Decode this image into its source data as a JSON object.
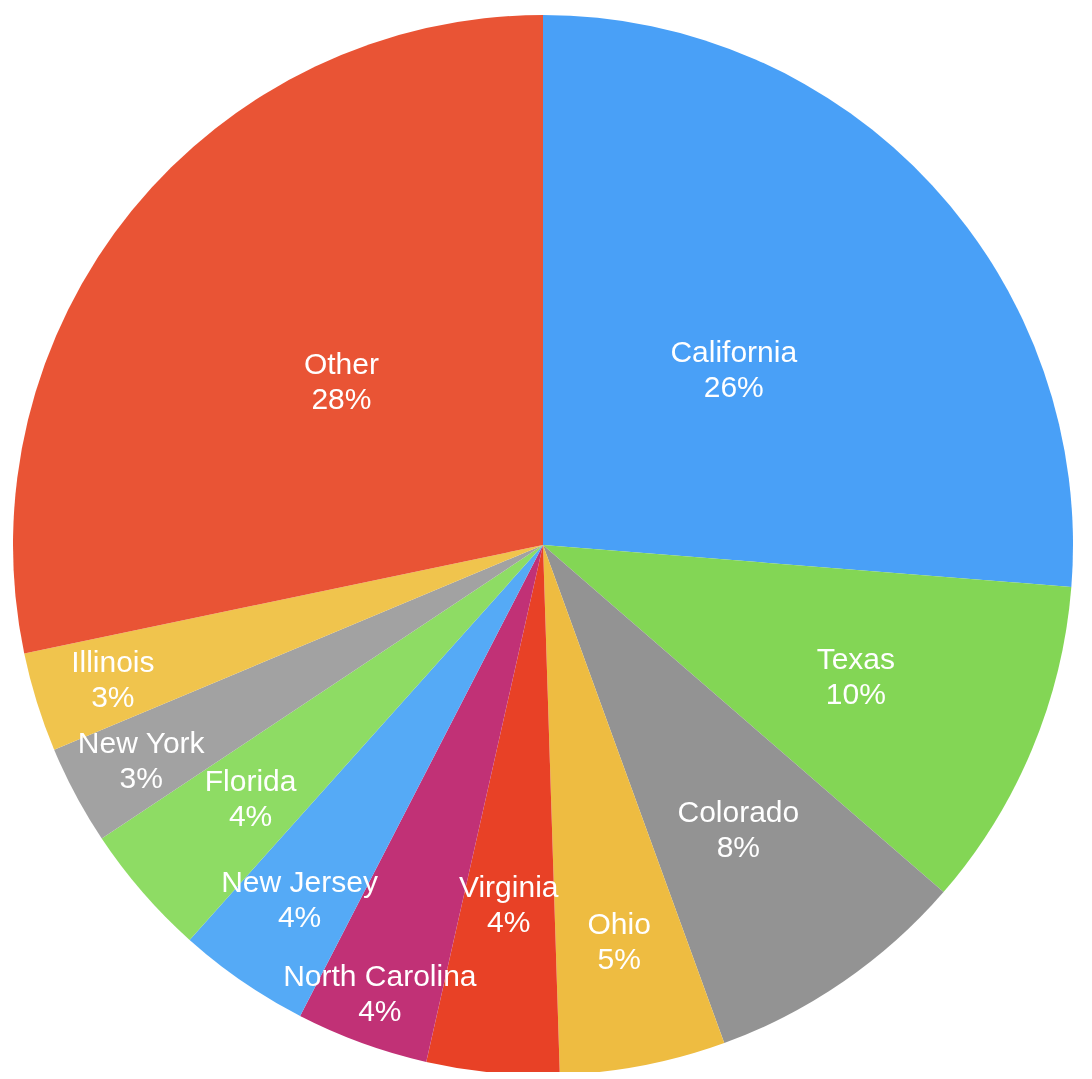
{
  "chart_data": {
    "type": "pie",
    "categories": [
      "California",
      "Texas",
      "Colorado",
      "Ohio",
      "Virginia",
      "North Carolina",
      "New Jersey",
      "Florida",
      "New York",
      "Illinois",
      "Other"
    ],
    "values": [
      26,
      10,
      8,
      5,
      4,
      4,
      4,
      4,
      3,
      3,
      28
    ],
    "value_labels": [
      "26%",
      "10%",
      "8%",
      "5%",
      "4%",
      "4%",
      "4%",
      "4%",
      "3%",
      "3%",
      "28%"
    ],
    "colors": [
      "#49a0f7",
      "#83d655",
      "#939393",
      "#eebc41",
      "#e84126",
      "#c13176",
      "#55aaf6",
      "#8edc64",
      "#a2a2a2",
      "#f0c44d",
      "#e95435"
    ],
    "legend": false
  }
}
